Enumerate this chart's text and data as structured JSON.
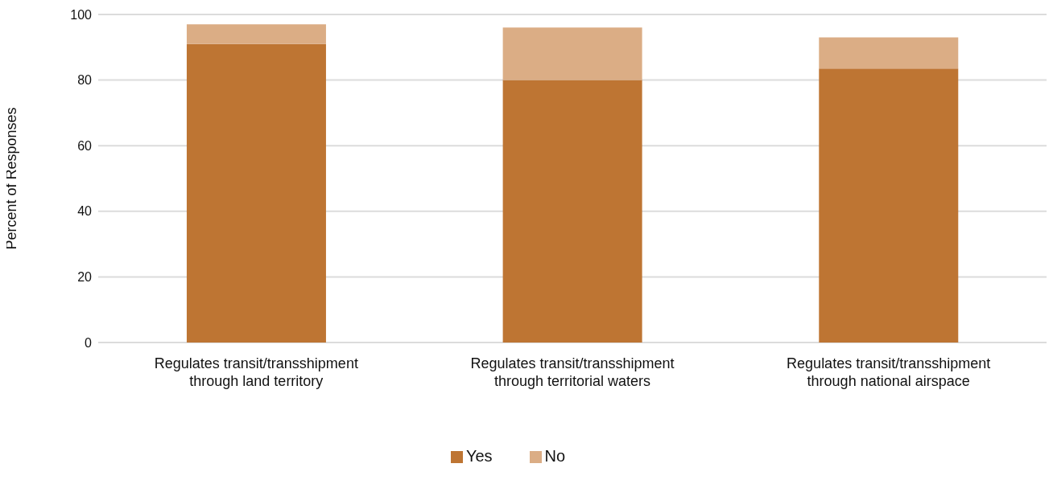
{
  "chart_data": {
    "type": "bar",
    "stacked": true,
    "ylabel": "Percent of Responses",
    "categories": [
      "Regulates transit/transshipment\nthrough land territory",
      "Regulates transit/transshipment\nthrough territorial waters",
      "Regulates transit/transshipment\nthrough national airspace"
    ],
    "series": [
      {
        "name": "Yes",
        "color": "#be7533",
        "values": [
          91,
          80,
          83.5
        ]
      },
      {
        "name": "No",
        "color": "#dbad85",
        "values": [
          6,
          16,
          9.5
        ]
      }
    ],
    "ylim": [
      0,
      100
    ],
    "yticks": [
      0,
      20,
      40,
      60,
      80,
      100
    ],
    "grid": "y",
    "legend": "bottom"
  }
}
